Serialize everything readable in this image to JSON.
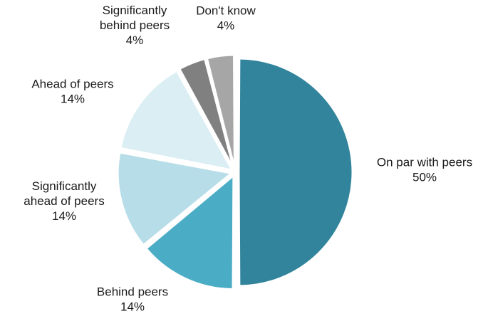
{
  "chart_data": {
    "type": "pie",
    "slices": [
      {
        "label_lines": [
          "On par with peers"
        ],
        "value": 50,
        "value_label": "50%",
        "color": "#31849b"
      },
      {
        "label_lines": [
          "Behind peers"
        ],
        "value": 14,
        "value_label": "14%",
        "color": "#4bacc6"
      },
      {
        "label_lines": [
          "Significantly",
          "ahead of peers"
        ],
        "value": 14,
        "value_label": "14%",
        "color": "#b7dde8"
      },
      {
        "label_lines": [
          "Ahead of peers"
        ],
        "value": 14,
        "value_label": "14%",
        "color": "#daeef3"
      },
      {
        "label_lines": [
          "Significantly",
          "behind peers"
        ],
        "value": 4,
        "value_label": "4%",
        "color": "#808080"
      },
      {
        "label_lines": [
          "Don't know"
        ],
        "value": 4,
        "value_label": "4%",
        "color": "#a6a6a6"
      }
    ],
    "start_angle_deg": 0,
    "direction": "clockwise",
    "exploded": true,
    "legend": "none"
  }
}
